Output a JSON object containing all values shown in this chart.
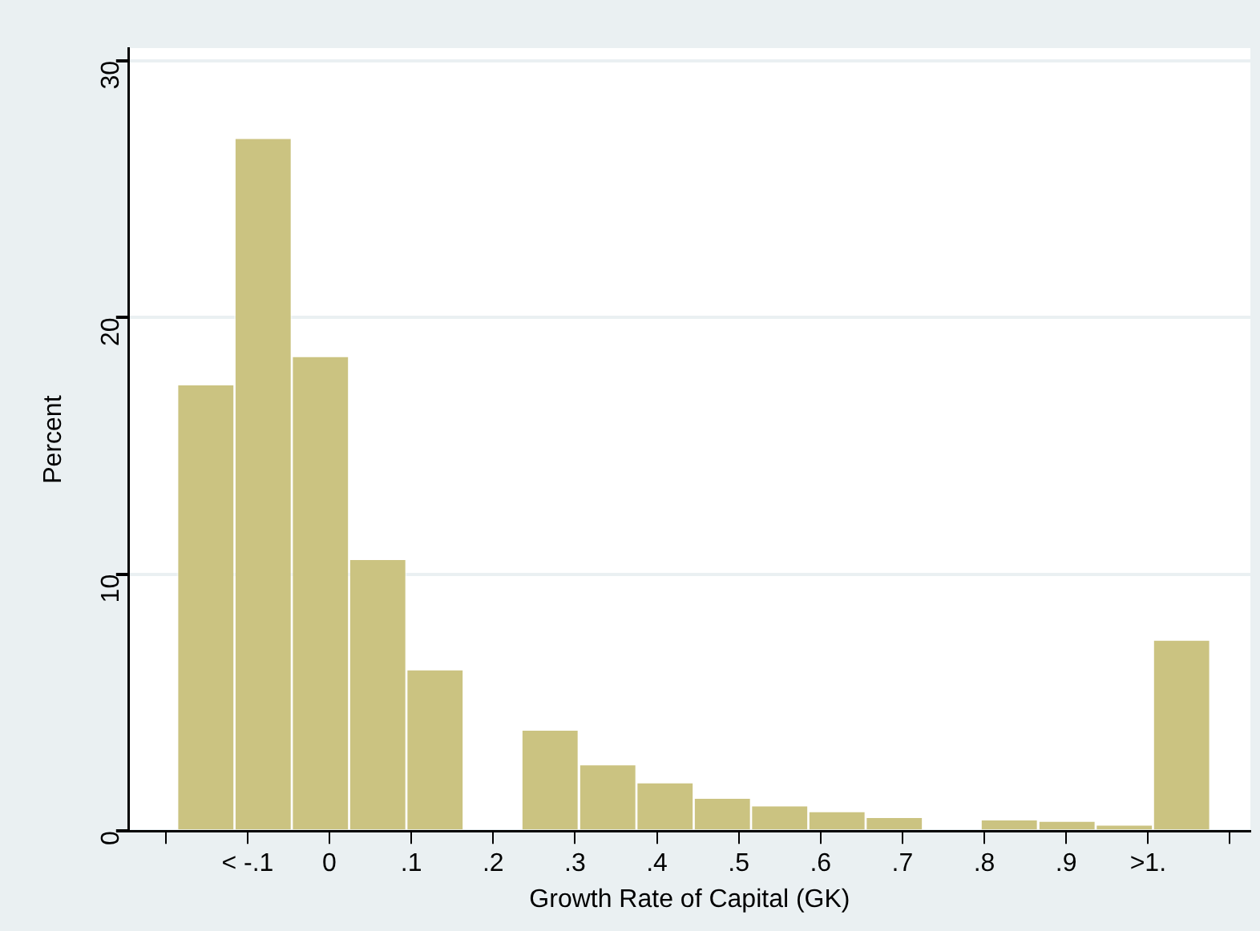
{
  "chart_data": {
    "type": "histogram",
    "xlabel": "Growth Rate of Capital (GK)",
    "ylabel": "Percent",
    "bins": [
      -0.186,
      -0.116,
      -0.046,
      0.024,
      0.094,
      0.164,
      0.234,
      0.305,
      0.375,
      0.445,
      0.515,
      0.585,
      0.655,
      0.725,
      0.795,
      0.866,
      0.936,
      1.006,
      1.076
    ],
    "values": [
      17.4,
      27.0,
      18.5,
      10.6,
      6.3,
      0,
      3.95,
      2.6,
      1.9,
      1.3,
      1.0,
      0.77,
      0.55,
      0,
      0.45,
      0.4,
      0.25,
      7.45
    ],
    "color": "#cbc381",
    "xlim": [
      -0.245,
      1.125
    ],
    "xticks": [
      {
        "value": -0.2,
        "label": null
      },
      {
        "value": -0.1,
        "label": "< -.1"
      },
      {
        "value": 0,
        "label": "0"
      },
      {
        "value": 0.1,
        "label": ".1"
      },
      {
        "value": 0.2,
        "label": ".2"
      },
      {
        "value": 0.3,
        "label": ".3"
      },
      {
        "value": 0.4,
        "label": ".4"
      },
      {
        "value": 0.5,
        "label": ".5"
      },
      {
        "value": 0.6,
        "label": ".6"
      },
      {
        "value": 0.7,
        "label": ".7"
      },
      {
        "value": 0.8,
        "label": ".8"
      },
      {
        "value": 0.9,
        "label": ".9"
      },
      {
        "value": 1.0,
        "label": ">1."
      },
      {
        "value": 1.1,
        "label": null
      }
    ],
    "ylim": [
      0,
      30.5
    ],
    "yticks": [
      0,
      10,
      20,
      30
    ],
    "grid": "y"
  }
}
